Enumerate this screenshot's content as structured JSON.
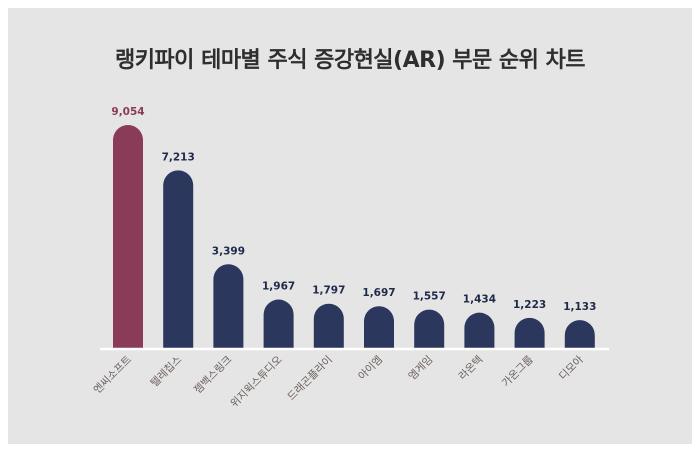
{
  "chart_data": {
    "type": "bar",
    "title": "랭키파이 테마별 주식 증강현실(AR) 부문 순위 차트",
    "categories": [
      "엔씨소프트",
      "텔레칩스",
      "젬백스링크",
      "위지윅스튜디오",
      "드래곤플라이",
      "아이엠",
      "엠게임",
      "라온텍",
      "가온그룹",
      "디모아"
    ],
    "values": [
      9054,
      7213,
      3399,
      1967,
      1797,
      1697,
      1557,
      1434,
      1223,
      1133
    ],
    "value_labels": [
      "9,054",
      "7,213",
      "3,399",
      "1,967",
      "1,797",
      "1,697",
      "1,557",
      "1,434",
      "1,223",
      "1,133"
    ],
    "ylim": [
      0,
      9054
    ],
    "grid": false,
    "colors": {
      "highlight": "#8a3b57",
      "bar": "#2b375c",
      "label": "#6b605c",
      "background": "#e5e5e5"
    }
  }
}
